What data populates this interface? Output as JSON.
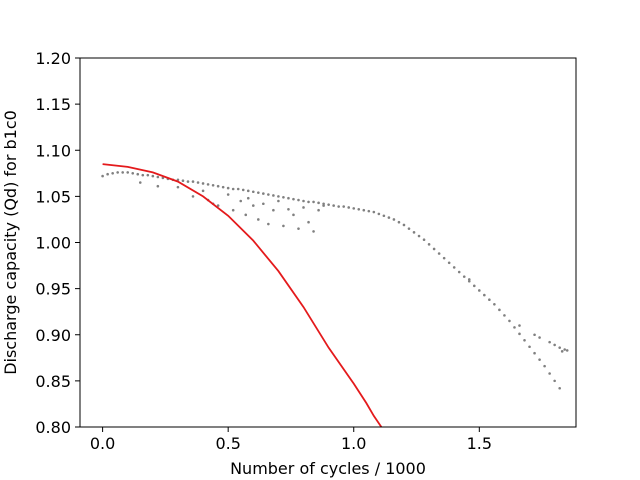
{
  "chart_data": {
    "type": "scatter",
    "xlabel": "Number of cycles / 1000",
    "ylabel": "Discharge capacity (Qd) for b1c0",
    "xlim": [
      -0.09,
      1.885
    ],
    "ylim": [
      0.8,
      1.2
    ],
    "x_ticks": [
      {
        "value": 0.0,
        "label": "0.0"
      },
      {
        "value": 0.5,
        "label": "0.5"
      },
      {
        "value": 1.0,
        "label": "1.0"
      },
      {
        "value": 1.5,
        "label": "1.5"
      }
    ],
    "y_ticks": [
      {
        "value": 0.8,
        "label": "0.80"
      },
      {
        "value": 0.85,
        "label": "0.85"
      },
      {
        "value": 0.9,
        "label": "0.90"
      },
      {
        "value": 0.95,
        "label": "0.95"
      },
      {
        "value": 1.0,
        "label": "1.00"
      },
      {
        "value": 1.05,
        "label": "1.05"
      },
      {
        "value": 1.1,
        "label": "1.10"
      },
      {
        "value": 1.15,
        "label": "1.15"
      },
      {
        "value": 1.2,
        "label": "1.20"
      }
    ],
    "grid": false,
    "series": [
      {
        "kind": "scatter",
        "color": "#808080",
        "points": [
          [
            0.0,
            1.072
          ],
          [
            0.02,
            1.074
          ],
          [
            0.04,
            1.075
          ],
          [
            0.06,
            1.076
          ],
          [
            0.08,
            1.076
          ],
          [
            0.1,
            1.076
          ],
          [
            0.12,
            1.075
          ],
          [
            0.14,
            1.074
          ],
          [
            0.16,
            1.073
          ],
          [
            0.18,
            1.073
          ],
          [
            0.2,
            1.072
          ],
          [
            0.22,
            1.071
          ],
          [
            0.24,
            1.07
          ],
          [
            0.26,
            1.069
          ],
          [
            0.28,
            1.068
          ],
          [
            0.3,
            1.068
          ],
          [
            0.32,
            1.067
          ],
          [
            0.34,
            1.066
          ],
          [
            0.36,
            1.066
          ],
          [
            0.38,
            1.065
          ],
          [
            0.4,
            1.064
          ],
          [
            0.42,
            1.063
          ],
          [
            0.44,
            1.062
          ],
          [
            0.46,
            1.061
          ],
          [
            0.48,
            1.06
          ],
          [
            0.5,
            1.059
          ],
          [
            0.52,
            1.058
          ],
          [
            0.54,
            1.058
          ],
          [
            0.56,
            1.057
          ],
          [
            0.58,
            1.056
          ],
          [
            0.6,
            1.055
          ],
          [
            0.62,
            1.054
          ],
          [
            0.64,
            1.053
          ],
          [
            0.66,
            1.052
          ],
          [
            0.68,
            1.051
          ],
          [
            0.7,
            1.05
          ],
          [
            0.72,
            1.049
          ],
          [
            0.74,
            1.048
          ],
          [
            0.76,
            1.047
          ],
          [
            0.78,
            1.046
          ],
          [
            0.8,
            1.045
          ],
          [
            0.82,
            1.044
          ],
          [
            0.84,
            1.044
          ],
          [
            0.86,
            1.043
          ],
          [
            0.88,
            1.042
          ],
          [
            0.9,
            1.041
          ],
          [
            0.92,
            1.04
          ],
          [
            0.94,
            1.039
          ],
          [
            0.96,
            1.039
          ],
          [
            0.98,
            1.038
          ],
          [
            1.0,
            1.037
          ],
          [
            1.02,
            1.036
          ],
          [
            1.04,
            1.035
          ],
          [
            1.06,
            1.034
          ],
          [
            1.08,
            1.033
          ],
          [
            1.1,
            1.031
          ],
          [
            1.12,
            1.029
          ],
          [
            1.14,
            1.027
          ],
          [
            1.16,
            1.025
          ],
          [
            1.18,
            1.022
          ],
          [
            1.2,
            1.019
          ],
          [
            1.22,
            1.015
          ],
          [
            1.24,
            1.011
          ],
          [
            1.26,
            1.007
          ],
          [
            1.28,
            1.003
          ],
          [
            1.3,
            0.998
          ],
          [
            1.32,
            0.993
          ],
          [
            1.34,
            0.988
          ],
          [
            1.36,
            0.983
          ],
          [
            1.38,
            0.978
          ],
          [
            1.4,
            0.973
          ],
          [
            1.42,
            0.968
          ],
          [
            1.44,
            0.963
          ],
          [
            1.46,
            0.958
          ],
          [
            1.48,
            0.953
          ],
          [
            1.5,
            0.948
          ],
          [
            1.52,
            0.943
          ],
          [
            1.54,
            0.938
          ],
          [
            1.56,
            0.933
          ],
          [
            1.58,
            0.927
          ],
          [
            1.6,
            0.921
          ],
          [
            1.62,
            0.915
          ],
          [
            1.64,
            0.908
          ],
          [
            1.66,
            0.901
          ],
          [
            1.68,
            0.894
          ],
          [
            1.7,
            0.887
          ],
          [
            1.72,
            0.88
          ],
          [
            1.74,
            0.873
          ],
          [
            1.76,
            0.866
          ],
          [
            1.78,
            0.858
          ],
          [
            1.8,
            0.85
          ],
          [
            1.82,
            0.842
          ],
          [
            1.84,
            0.884
          ],
          [
            1.85,
            0.883
          ],
          [
            0.15,
            1.065
          ],
          [
            0.22,
            1.061
          ],
          [
            0.3,
            1.06
          ],
          [
            0.36,
            1.05
          ],
          [
            0.4,
            1.056
          ],
          [
            0.42,
            1.046
          ],
          [
            0.44,
            1.042
          ],
          [
            0.46,
            1.04
          ],
          [
            0.5,
            1.052
          ],
          [
            0.52,
            1.035
          ],
          [
            0.55,
            1.045
          ],
          [
            0.57,
            1.03
          ],
          [
            0.58,
            1.048
          ],
          [
            0.6,
            1.04
          ],
          [
            0.62,
            1.025
          ],
          [
            0.64,
            1.042
          ],
          [
            0.66,
            1.02
          ],
          [
            0.68,
            1.035
          ],
          [
            0.7,
            1.045
          ],
          [
            0.72,
            1.018
          ],
          [
            0.74,
            1.036
          ],
          [
            0.76,
            1.03
          ],
          [
            0.78,
            1.015
          ],
          [
            0.8,
            1.038
          ],
          [
            0.82,
            1.022
          ],
          [
            0.84,
            1.012
          ],
          [
            0.86,
            1.035
          ],
          [
            0.88,
            1.04
          ],
          [
            1.46,
            0.96
          ],
          [
            1.66,
            0.91
          ],
          [
            1.72,
            0.9
          ],
          [
            1.74,
            0.897
          ],
          [
            1.78,
            0.892
          ],
          [
            1.8,
            0.889
          ],
          [
            1.82,
            0.886
          ],
          [
            1.83,
            0.882
          ]
        ]
      },
      {
        "kind": "line",
        "color": "#e41a1c",
        "points": [
          [
            0.0,
            1.085
          ],
          [
            0.1,
            1.082
          ],
          [
            0.2,
            1.076
          ],
          [
            0.3,
            1.066
          ],
          [
            0.4,
            1.05
          ],
          [
            0.5,
            1.029
          ],
          [
            0.6,
            1.002
          ],
          [
            0.7,
            0.969
          ],
          [
            0.8,
            0.93
          ],
          [
            0.9,
            0.886
          ],
          [
            1.0,
            0.847
          ],
          [
            1.05,
            0.826
          ],
          [
            1.08,
            0.812
          ],
          [
            1.11,
            0.8
          ]
        ]
      }
    ]
  }
}
